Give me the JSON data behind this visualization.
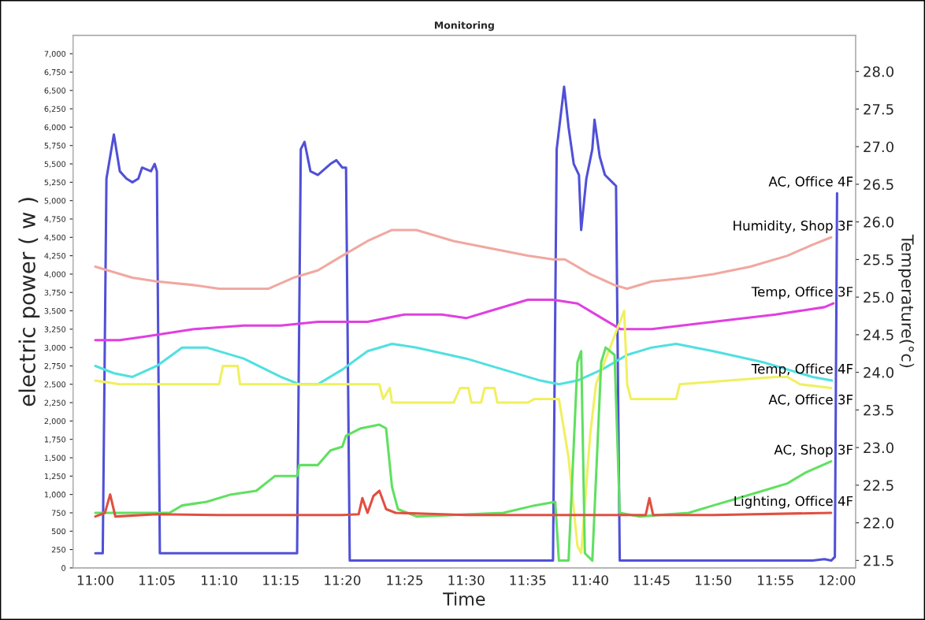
{
  "chart_data": {
    "type": "line",
    "title": "Monitoring",
    "xlabel": "Time",
    "ylabel": "electric power ( w )",
    "y2label": "Temperature(°c)",
    "xlim": [
      10.97,
      12.025
    ],
    "xticks": [
      {
        "value": 11.0,
        "label": "11:00"
      },
      {
        "value": 11.083,
        "label": "11:05"
      },
      {
        "value": 11.167,
        "label": "11:10"
      },
      {
        "value": 11.25,
        "label": "11:15"
      },
      {
        "value": 11.333,
        "label": "11:20"
      },
      {
        "value": 11.417,
        "label": "11:25"
      },
      {
        "value": 11.5,
        "label": "11:30"
      },
      {
        "value": 11.583,
        "label": "11:35"
      },
      {
        "value": 11.667,
        "label": "11:40"
      },
      {
        "value": 11.75,
        "label": "11:45"
      },
      {
        "value": 11.833,
        "label": "11:50"
      },
      {
        "value": 11.917,
        "label": "11:55"
      },
      {
        "value": 12.0,
        "label": "12:00"
      }
    ],
    "ylim": [
      0,
      7250
    ],
    "yticks": [
      {
        "value": 0,
        "label": "0"
      },
      {
        "value": 250,
        "label": "250"
      },
      {
        "value": 500,
        "label": "500"
      },
      {
        "value": 750,
        "label": "750"
      },
      {
        "value": 1000,
        "label": "1,000"
      },
      {
        "value": 1250,
        "label": "1,250"
      },
      {
        "value": 1500,
        "label": "1,500"
      },
      {
        "value": 1750,
        "label": "1,750"
      },
      {
        "value": 2000,
        "label": "2,000"
      },
      {
        "value": 2250,
        "label": "2,250"
      },
      {
        "value": 2500,
        "label": "2,500"
      },
      {
        "value": 2750,
        "label": "2,750"
      },
      {
        "value": 3000,
        "label": "3,000"
      },
      {
        "value": 3250,
        "label": "3,250"
      },
      {
        "value": 3500,
        "label": "3,500"
      },
      {
        "value": 3750,
        "label": "3,750"
      },
      {
        "value": 4000,
        "label": "4,000"
      },
      {
        "value": 4250,
        "label": "4,250"
      },
      {
        "value": 4500,
        "label": "4,500"
      },
      {
        "value": 4750,
        "label": "4,750"
      },
      {
        "value": 5000,
        "label": "5,000"
      },
      {
        "value": 5250,
        "label": "5,250"
      },
      {
        "value": 5500,
        "label": "5,500"
      },
      {
        "value": 5750,
        "label": "5,750"
      },
      {
        "value": 6000,
        "label": "6,000"
      },
      {
        "value": 6250,
        "label": "6,250"
      },
      {
        "value": 6500,
        "label": "6,500"
      },
      {
        "value": 6750,
        "label": "6,750"
      },
      {
        "value": 7000,
        "label": "7,000"
      }
    ],
    "y2lim": [
      21.4,
      28.48
    ],
    "y2ticks": [
      {
        "value": 21.5,
        "label": "21.5"
      },
      {
        "value": 22.0,
        "label": "22.0"
      },
      {
        "value": 22.5,
        "label": "22.5"
      },
      {
        "value": 23.0,
        "label": "23.0"
      },
      {
        "value": 23.5,
        "label": "23.5"
      },
      {
        "value": 24.0,
        "label": "24.0"
      },
      {
        "value": 24.5,
        "label": "24.5"
      },
      {
        "value": 25.0,
        "label": "25.0"
      },
      {
        "value": 25.5,
        "label": "25.5"
      },
      {
        "value": 26.0,
        "label": "26.0"
      },
      {
        "value": 26.5,
        "label": "26.5"
      },
      {
        "value": 27.0,
        "label": "27.0"
      },
      {
        "value": 27.5,
        "label": "27.5"
      },
      {
        "value": 28.0,
        "label": "28.0"
      }
    ],
    "grid": false,
    "legend": false,
    "series": [
      {
        "name": "AC, Office 4F",
        "color": "#5050d8",
        "x": [
          11.0,
          11.01,
          11.015,
          11.025,
          11.033,
          11.042,
          11.05,
          11.058,
          11.063,
          11.075,
          11.08,
          11.083,
          11.087,
          11.272,
          11.277,
          11.282,
          11.29,
          11.3,
          11.317,
          11.325,
          11.333,
          11.338,
          11.343,
          11.617,
          11.622,
          11.632,
          11.638,
          11.645,
          11.652,
          11.655,
          11.662,
          11.67,
          11.673,
          11.68,
          11.687,
          11.697,
          11.702,
          11.707,
          11.967,
          11.983,
          11.992,
          11.997,
          12.0
        ],
        "values": [
          200,
          200,
          5300,
          5900,
          5400,
          5300,
          5250,
          5300,
          5450,
          5400,
          5500,
          5400,
          200,
          200,
          5700,
          5800,
          5400,
          5350,
          5500,
          5550,
          5450,
          5450,
          100,
          100,
          5700,
          6550,
          6000,
          5500,
          5350,
          4600,
          5300,
          5700,
          6100,
          5600,
          5350,
          5250,
          5200,
          100,
          100,
          120,
          100,
          150,
          5100
        ]
      },
      {
        "name": "Humidity, Shop 3F",
        "color": "#f0a8a0",
        "x": [
          11.0,
          11.05,
          11.083,
          11.133,
          11.167,
          11.233,
          11.267,
          11.3,
          11.333,
          11.367,
          11.4,
          11.433,
          11.483,
          11.533,
          11.583,
          11.617,
          11.633,
          11.667,
          11.7,
          11.717,
          11.75,
          11.8,
          11.833,
          11.883,
          11.933,
          11.967,
          11.992
        ],
        "values": [
          4100,
          3950,
          3900,
          3850,
          3800,
          3800,
          3950,
          4050,
          4250,
          4450,
          4600,
          4600,
          4450,
          4350,
          4250,
          4200,
          4200,
          4000,
          3850,
          3800,
          3900,
          3950,
          4000,
          4100,
          4250,
          4400,
          4500
        ]
      },
      {
        "name": "Temp, Office 3F",
        "color": "#e040e0",
        "x": [
          11.0,
          11.033,
          11.067,
          11.1,
          11.133,
          11.2,
          11.25,
          11.3,
          11.367,
          11.417,
          11.467,
          11.5,
          11.533,
          11.583,
          11.617,
          11.65,
          11.683,
          11.708,
          11.75,
          11.833,
          11.917,
          11.983,
          11.995
        ],
        "values": [
          3100,
          3100,
          3150,
          3200,
          3250,
          3300,
          3300,
          3350,
          3350,
          3450,
          3450,
          3400,
          3500,
          3650,
          3650,
          3600,
          3400,
          3250,
          3250,
          3350,
          3450,
          3550,
          3600
        ]
      },
      {
        "name": "Temp, Office 4F",
        "color": "#50e0e0",
        "x": [
          11.0,
          11.025,
          11.05,
          11.083,
          11.117,
          11.15,
          11.2,
          11.25,
          11.275,
          11.3,
          11.333,
          11.367,
          11.4,
          11.433,
          11.5,
          11.55,
          11.6,
          11.625,
          11.65,
          11.683,
          11.717,
          11.75,
          11.783,
          11.833,
          11.9,
          11.967,
          11.993
        ],
        "values": [
          2750,
          2650,
          2600,
          2750,
          3000,
          3000,
          2850,
          2600,
          2500,
          2500,
          2700,
          2950,
          3050,
          3000,
          2850,
          2700,
          2550,
          2500,
          2550,
          2700,
          2900,
          3000,
          3050,
          2950,
          2800,
          2600,
          2550
        ]
      },
      {
        "name": "AC, Office 3F",
        "color": "#f0f060",
        "x": [
          11.0,
          11.033,
          11.167,
          11.172,
          11.192,
          11.195,
          11.233,
          11.333,
          11.383,
          11.388,
          11.397,
          11.4,
          11.483,
          11.492,
          11.503,
          11.507,
          11.52,
          11.525,
          11.538,
          11.542,
          11.583,
          11.592,
          11.625,
          11.638,
          11.65,
          11.655,
          11.667,
          11.675,
          11.713,
          11.717,
          11.722,
          11.783,
          11.788,
          11.917,
          11.933,
          11.95,
          11.992
        ],
        "values": [
          2550,
          2500,
          2500,
          2750,
          2750,
          2500,
          2500,
          2500,
          2500,
          2300,
          2450,
          2250,
          2250,
          2450,
          2450,
          2250,
          2250,
          2450,
          2450,
          2250,
          2250,
          2300,
          2300,
          1500,
          300,
          200,
          1800,
          2500,
          3500,
          2500,
          2300,
          2300,
          2500,
          2600,
          2600,
          2500,
          2450
        ]
      },
      {
        "name": "AC, Shop 3F",
        "color": "#60e060",
        "x": [
          11.0,
          11.1,
          11.117,
          11.15,
          11.183,
          11.217,
          11.242,
          11.272,
          11.275,
          11.3,
          11.317,
          11.333,
          11.338,
          11.358,
          11.383,
          11.392,
          11.4,
          11.408,
          11.433,
          11.55,
          11.592,
          11.62,
          11.625,
          11.638,
          11.65,
          11.655,
          11.66,
          11.67,
          11.682,
          11.688,
          11.7,
          11.707,
          11.733,
          11.8,
          11.833,
          11.867,
          11.9,
          11.933,
          11.958,
          11.992
        ],
        "values": [
          750,
          750,
          850,
          900,
          1000,
          1050,
          1250,
          1250,
          1400,
          1400,
          1600,
          1650,
          1800,
          1900,
          1950,
          1900,
          1100,
          800,
          700,
          750,
          850,
          900,
          100,
          100,
          2800,
          2950,
          200,
          100,
          2800,
          3000,
          2900,
          750,
          700,
          750,
          850,
          950,
          1050,
          1150,
          1300,
          1450
        ]
      },
      {
        "name": "Lighting, Office 4F",
        "color": "#e05040",
        "x": [
          11.0,
          11.013,
          11.02,
          11.027,
          11.083,
          11.167,
          11.333,
          11.355,
          11.36,
          11.367,
          11.375,
          11.383,
          11.392,
          11.405,
          11.5,
          11.667,
          11.742,
          11.747,
          11.752,
          11.833,
          11.992
        ],
        "values": [
          700,
          750,
          1000,
          700,
          730,
          720,
          720,
          730,
          950,
          750,
          980,
          1050,
          800,
          750,
          720,
          720,
          720,
          950,
          720,
          720,
          750
        ]
      }
    ]
  }
}
